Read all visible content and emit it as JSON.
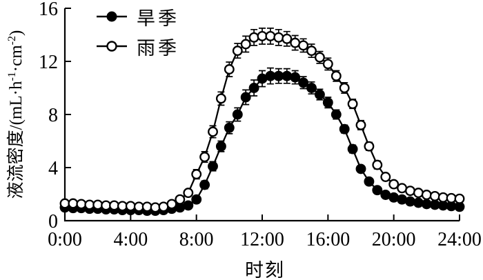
{
  "figure": {
    "background": "#ffffff",
    "ink_color": "#000000"
  },
  "chart_data": {
    "type": "line",
    "title": "",
    "xlabel": "时刻",
    "ylabel": "液流密度/(mL·h⁻¹·cm⁻²)",
    "ylabel_parts": [
      {
        "text": "液流密度/(mL·h"
      },
      {
        "text": "-1",
        "sup": true
      },
      {
        "text": "·cm"
      },
      {
        "text": "-2",
        "sup": true
      },
      {
        "text": ")"
      }
    ],
    "xlim_hours": [
      0,
      24
    ],
    "ylim": [
      0,
      16
    ],
    "grid": false,
    "legend_position": "top-left-inside",
    "x_tick_labels": [
      "0:00",
      "4:00",
      "8:00",
      "12:00",
      "16:00",
      "20:00",
      "24:00"
    ],
    "x_tick_hours": [
      0,
      4,
      8,
      12,
      16,
      20,
      24
    ],
    "y_tick_labels": [
      "0",
      "4",
      "8",
      "12",
      "16"
    ],
    "y_tick_values": [
      0,
      4,
      8,
      12,
      16
    ],
    "x_hours": [
      0,
      0.5,
      1,
      1.5,
      2,
      2.5,
      3,
      3.5,
      4,
      4.5,
      5,
      5.5,
      6,
      6.5,
      7,
      7.5,
      8,
      8.5,
      9,
      9.5,
      10,
      10.5,
      11,
      11.5,
      12,
      12.5,
      13,
      13.5,
      14,
      14.5,
      15,
      15.5,
      16,
      16.5,
      17,
      17.5,
      18,
      18.5,
      19,
      19.5,
      20,
      20.5,
      21,
      21.5,
      22,
      22.5,
      23,
      23.5,
      24
    ],
    "series": [
      {
        "name": "旱季",
        "key": "dry-season",
        "marker": "filled-circle",
        "color": "#000000",
        "values": [
          1.0,
          0.95,
          0.95,
          0.9,
          0.9,
          0.85,
          0.85,
          0.8,
          0.8,
          0.8,
          0.75,
          0.75,
          0.8,
          0.9,
          1.0,
          1.15,
          1.6,
          2.7,
          4.1,
          5.6,
          7.0,
          8.0,
          9.3,
          10.0,
          10.7,
          10.9,
          10.9,
          10.9,
          10.8,
          10.4,
          10.0,
          9.5,
          8.9,
          8.0,
          6.9,
          5.4,
          3.9,
          2.95,
          2.3,
          1.95,
          1.75,
          1.6,
          1.45,
          1.35,
          1.25,
          1.2,
          1.15,
          1.1,
          1.05
        ],
        "errors": [
          0.1,
          0.1,
          0.1,
          0.1,
          0.08,
          0.08,
          0.08,
          0.08,
          0.08,
          0.08,
          0.08,
          0.08,
          0.08,
          0.1,
          0.12,
          0.15,
          0.25,
          0.3,
          0.35,
          0.4,
          0.45,
          0.5,
          0.55,
          0.6,
          0.6,
          0.6,
          0.55,
          0.55,
          0.5,
          0.45,
          0.45,
          0.4,
          0.4,
          0.35,
          0.3,
          0.3,
          0.25,
          0.2,
          0.15,
          0.12,
          0.1,
          0.1,
          0.1,
          0.08,
          0.08,
          0.08,
          0.08,
          0.08,
          0.08
        ]
      },
      {
        "name": "雨季",
        "key": "rainy-season",
        "marker": "open-circle",
        "color": "#000000",
        "values": [
          1.3,
          1.3,
          1.25,
          1.2,
          1.2,
          1.15,
          1.15,
          1.1,
          1.1,
          1.05,
          1.05,
          1.0,
          1.05,
          1.25,
          1.6,
          2.1,
          3.5,
          4.8,
          6.7,
          9.2,
          11.4,
          12.8,
          13.3,
          13.8,
          13.9,
          13.9,
          13.8,
          13.7,
          13.4,
          13.2,
          12.8,
          12.3,
          11.8,
          10.9,
          10.0,
          8.8,
          7.2,
          5.6,
          4.2,
          3.3,
          2.75,
          2.45,
          2.25,
          2.1,
          1.95,
          1.85,
          1.75,
          1.7,
          1.65
        ],
        "errors": [
          0.15,
          0.15,
          0.12,
          0.12,
          0.12,
          0.1,
          0.1,
          0.1,
          0.1,
          0.1,
          0.1,
          0.1,
          0.1,
          0.12,
          0.2,
          0.25,
          0.35,
          0.4,
          0.45,
          0.5,
          0.55,
          0.55,
          0.6,
          0.6,
          0.6,
          0.6,
          0.6,
          0.55,
          0.55,
          0.5,
          0.5,
          0.45,
          0.45,
          0.4,
          0.4,
          0.35,
          0.35,
          0.3,
          0.3,
          0.25,
          0.2,
          0.2,
          0.15,
          0.15,
          0.15,
          0.12,
          0.12,
          0.1,
          0.1
        ]
      }
    ]
  }
}
